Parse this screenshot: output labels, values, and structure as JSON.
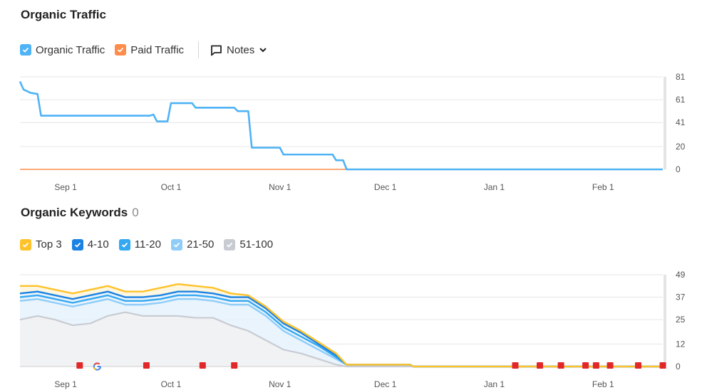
{
  "organic_traffic": {
    "title": "Organic Traffic",
    "legend": [
      {
        "label": "Organic Traffic",
        "color": "#4fb3f5"
      },
      {
        "label": "Paid Traffic",
        "color": "#ff8c4a"
      }
    ],
    "notes_label": "Notes"
  },
  "organic_keywords": {
    "title": "Organic Keywords",
    "count": "0",
    "legend": [
      {
        "label": "Top 3",
        "color": "#ffc22b"
      },
      {
        "label": "4-10",
        "color": "#1a82e2"
      },
      {
        "label": "11-20",
        "color": "#34a8f0"
      },
      {
        "label": "21-50",
        "color": "#8fcdf8"
      },
      {
        "label": "51-100",
        "color": "#c8ccd2"
      }
    ]
  },
  "chart_data": [
    {
      "type": "line",
      "title": "Organic Traffic",
      "x_ticks": [
        "Sep 1",
        "Oct 1",
        "Nov 1",
        "Dec 1",
        "Jan 1",
        "Feb 1"
      ],
      "y_ticks": [
        81,
        61,
        41,
        20,
        0
      ],
      "ylim": [
        0,
        81
      ],
      "xlim": [
        "2023-08-19",
        "2024-02-18"
      ],
      "grid": true,
      "series": [
        {
          "name": "Organic Traffic",
          "color": "#4fb3f5",
          "points": [
            [
              "2023-08-19",
              77
            ],
            [
              "2023-08-20",
              70
            ],
            [
              "2023-08-22",
              67
            ],
            [
              "2023-08-24",
              66
            ],
            [
              "2023-08-25",
              47
            ],
            [
              "2023-09-15",
              47
            ],
            [
              "2023-09-17",
              47
            ],
            [
              "2023-09-25",
              47
            ],
            [
              "2023-09-26",
              48
            ],
            [
              "2023-09-27",
              42
            ],
            [
              "2023-09-30",
              42
            ],
            [
              "2023-10-01",
              58
            ],
            [
              "2023-10-07",
              58
            ],
            [
              "2023-10-08",
              54
            ],
            [
              "2023-10-19",
              54
            ],
            [
              "2023-10-20",
              51
            ],
            [
              "2023-10-23",
              51
            ],
            [
              "2023-10-24",
              19
            ],
            [
              "2023-11-01",
              19
            ],
            [
              "2023-11-02",
              13
            ],
            [
              "2023-11-16",
              13
            ],
            [
              "2023-11-17",
              8
            ],
            [
              "2023-11-19",
              8
            ],
            [
              "2023-11-20",
              0
            ],
            [
              "2024-02-18",
              0
            ]
          ]
        },
        {
          "name": "Paid Traffic",
          "color": "#ff8c4a",
          "points": [
            [
              "2023-08-19",
              0
            ],
            [
              "2023-11-20",
              0
            ]
          ]
        }
      ]
    },
    {
      "type": "area",
      "title": "Organic Keywords",
      "x_ticks": [
        "Sep 1",
        "Oct 1",
        "Nov 1",
        "Dec 1",
        "Jan 1",
        "Feb 1"
      ],
      "y_ticks": [
        49,
        37,
        25,
        12,
        0
      ],
      "ylim": [
        0,
        49
      ],
      "xlim": [
        "2023-08-19",
        "2024-02-18"
      ],
      "grid": true,
      "x": [
        "2023-08-19",
        "2023-08-24",
        "2023-08-29",
        "2023-09-03",
        "2023-09-08",
        "2023-09-13",
        "2023-09-18",
        "2023-09-23",
        "2023-09-28",
        "2023-10-03",
        "2023-10-08",
        "2023-10-13",
        "2023-10-18",
        "2023-10-23",
        "2023-10-28",
        "2023-11-02",
        "2023-11-07",
        "2023-11-12",
        "2023-11-17",
        "2023-11-20",
        "2023-12-08",
        "2023-12-09",
        "2024-02-18"
      ],
      "series": [
        {
          "name": "Top 3",
          "color": "#ffc22b",
          "values": [
            43,
            43,
            41,
            39,
            41,
            43,
            40,
            40,
            42,
            44,
            43,
            42,
            39,
            38,
            32,
            24,
            19,
            13,
            7,
            1,
            1,
            0,
            0
          ]
        },
        {
          "name": "4-10",
          "color": "#1a82e2",
          "values": [
            39,
            40,
            38,
            36,
            38,
            40,
            37,
            37,
            38,
            40,
            40,
            39,
            37,
            37,
            31,
            23,
            18,
            12,
            6,
            1,
            1,
            0,
            0
          ]
        },
        {
          "name": "11-20",
          "color": "#34a8f0",
          "values": [
            37,
            38,
            36,
            34,
            36,
            38,
            35,
            35,
            36,
            38,
            38,
            37,
            35,
            35,
            29,
            21,
            16,
            11,
            5,
            1,
            1,
            0,
            0
          ]
        },
        {
          "name": "21-50",
          "color": "#8fcdf8",
          "values": [
            35,
            36,
            34,
            32,
            34,
            36,
            33,
            33,
            34,
            36,
            36,
            35,
            33,
            33,
            27,
            19,
            14,
            9,
            4,
            1,
            1,
            0,
            0
          ]
        },
        {
          "name": "51-100",
          "color": "#c8ccd2",
          "values": [
            25,
            27,
            25,
            22,
            23,
            27,
            29,
            27,
            27,
            27,
            26,
            26,
            22,
            19,
            14,
            9,
            7,
            4,
            1,
            0,
            0,
            0,
            0
          ]
        }
      ],
      "event_flags": [
        "2023-09-05",
        "2023-09-24",
        "2023-10-10",
        "2023-10-19",
        "2024-01-07",
        "2024-01-14",
        "2024-01-20",
        "2024-01-27",
        "2024-01-30",
        "2024-02-03",
        "2024-02-11",
        "2024-02-18"
      ],
      "google_update": "2023-09-10"
    }
  ]
}
